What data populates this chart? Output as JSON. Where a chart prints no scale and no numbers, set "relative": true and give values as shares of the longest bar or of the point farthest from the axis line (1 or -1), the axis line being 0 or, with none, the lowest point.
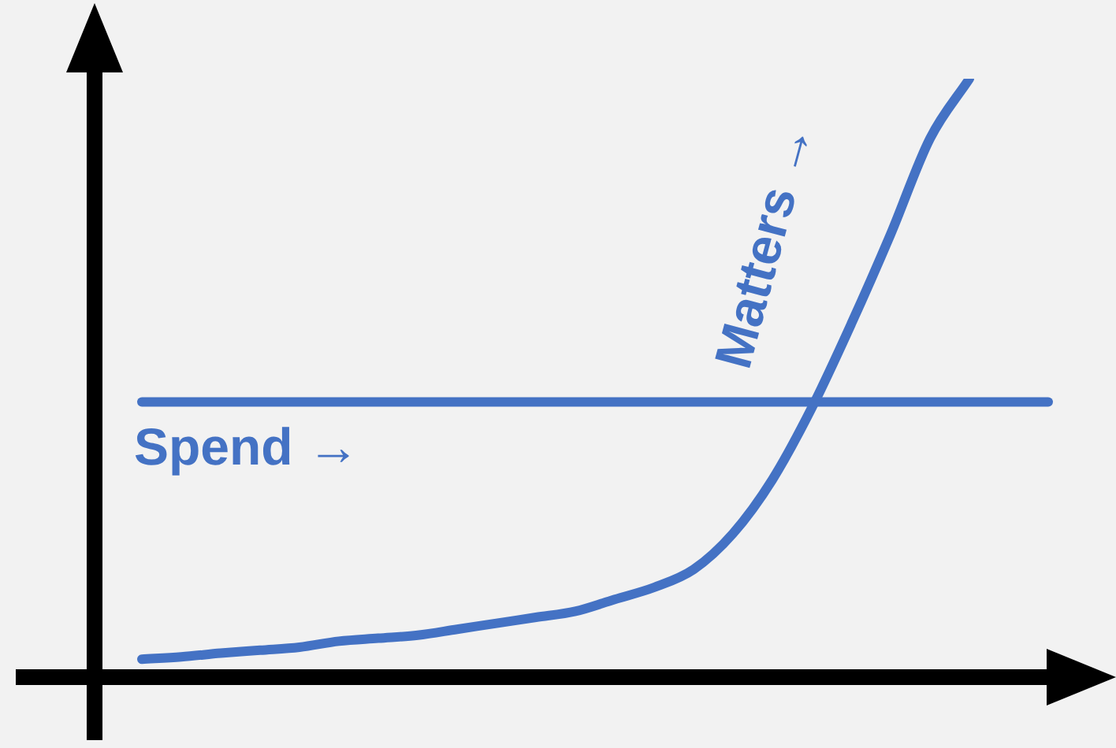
{
  "chart_data": {
    "type": "line",
    "relative": true,
    "legend": false,
    "marker": "none",
    "line_style": "solid",
    "categories": [
      null,
      null,
      null,
      null,
      null,
      null,
      null,
      null,
      null,
      null,
      null,
      null,
      null,
      null,
      null,
      null,
      null,
      null,
      null,
      null,
      null,
      null,
      null,
      null
    ],
    "series": [
      {
        "name": "Spend →",
        "color": "#4472c4",
        "values": [
          0.46,
          0.46,
          0.46,
          0.46,
          0.46,
          0.46,
          0.46,
          0.46,
          0.46,
          0.46,
          0.46,
          0.46,
          0.46,
          0.46,
          0.46,
          0.46,
          0.46,
          0.46,
          0.46,
          0.46,
          0.46,
          0.46,
          0.46,
          0.46
        ]
      },
      {
        "name": "Matters →",
        "color": "#4472c4",
        "values": [
          0.03,
          0.034,
          0.04,
          0.045,
          0.05,
          0.06,
          0.065,
          0.07,
          0.08,
          0.09,
          0.1,
          0.11,
          0.13,
          0.15,
          0.18,
          0.24,
          0.33,
          0.45,
          0.59,
          0.74,
          0.9,
          1,
          null,
          null
        ]
      }
    ]
  }
}
